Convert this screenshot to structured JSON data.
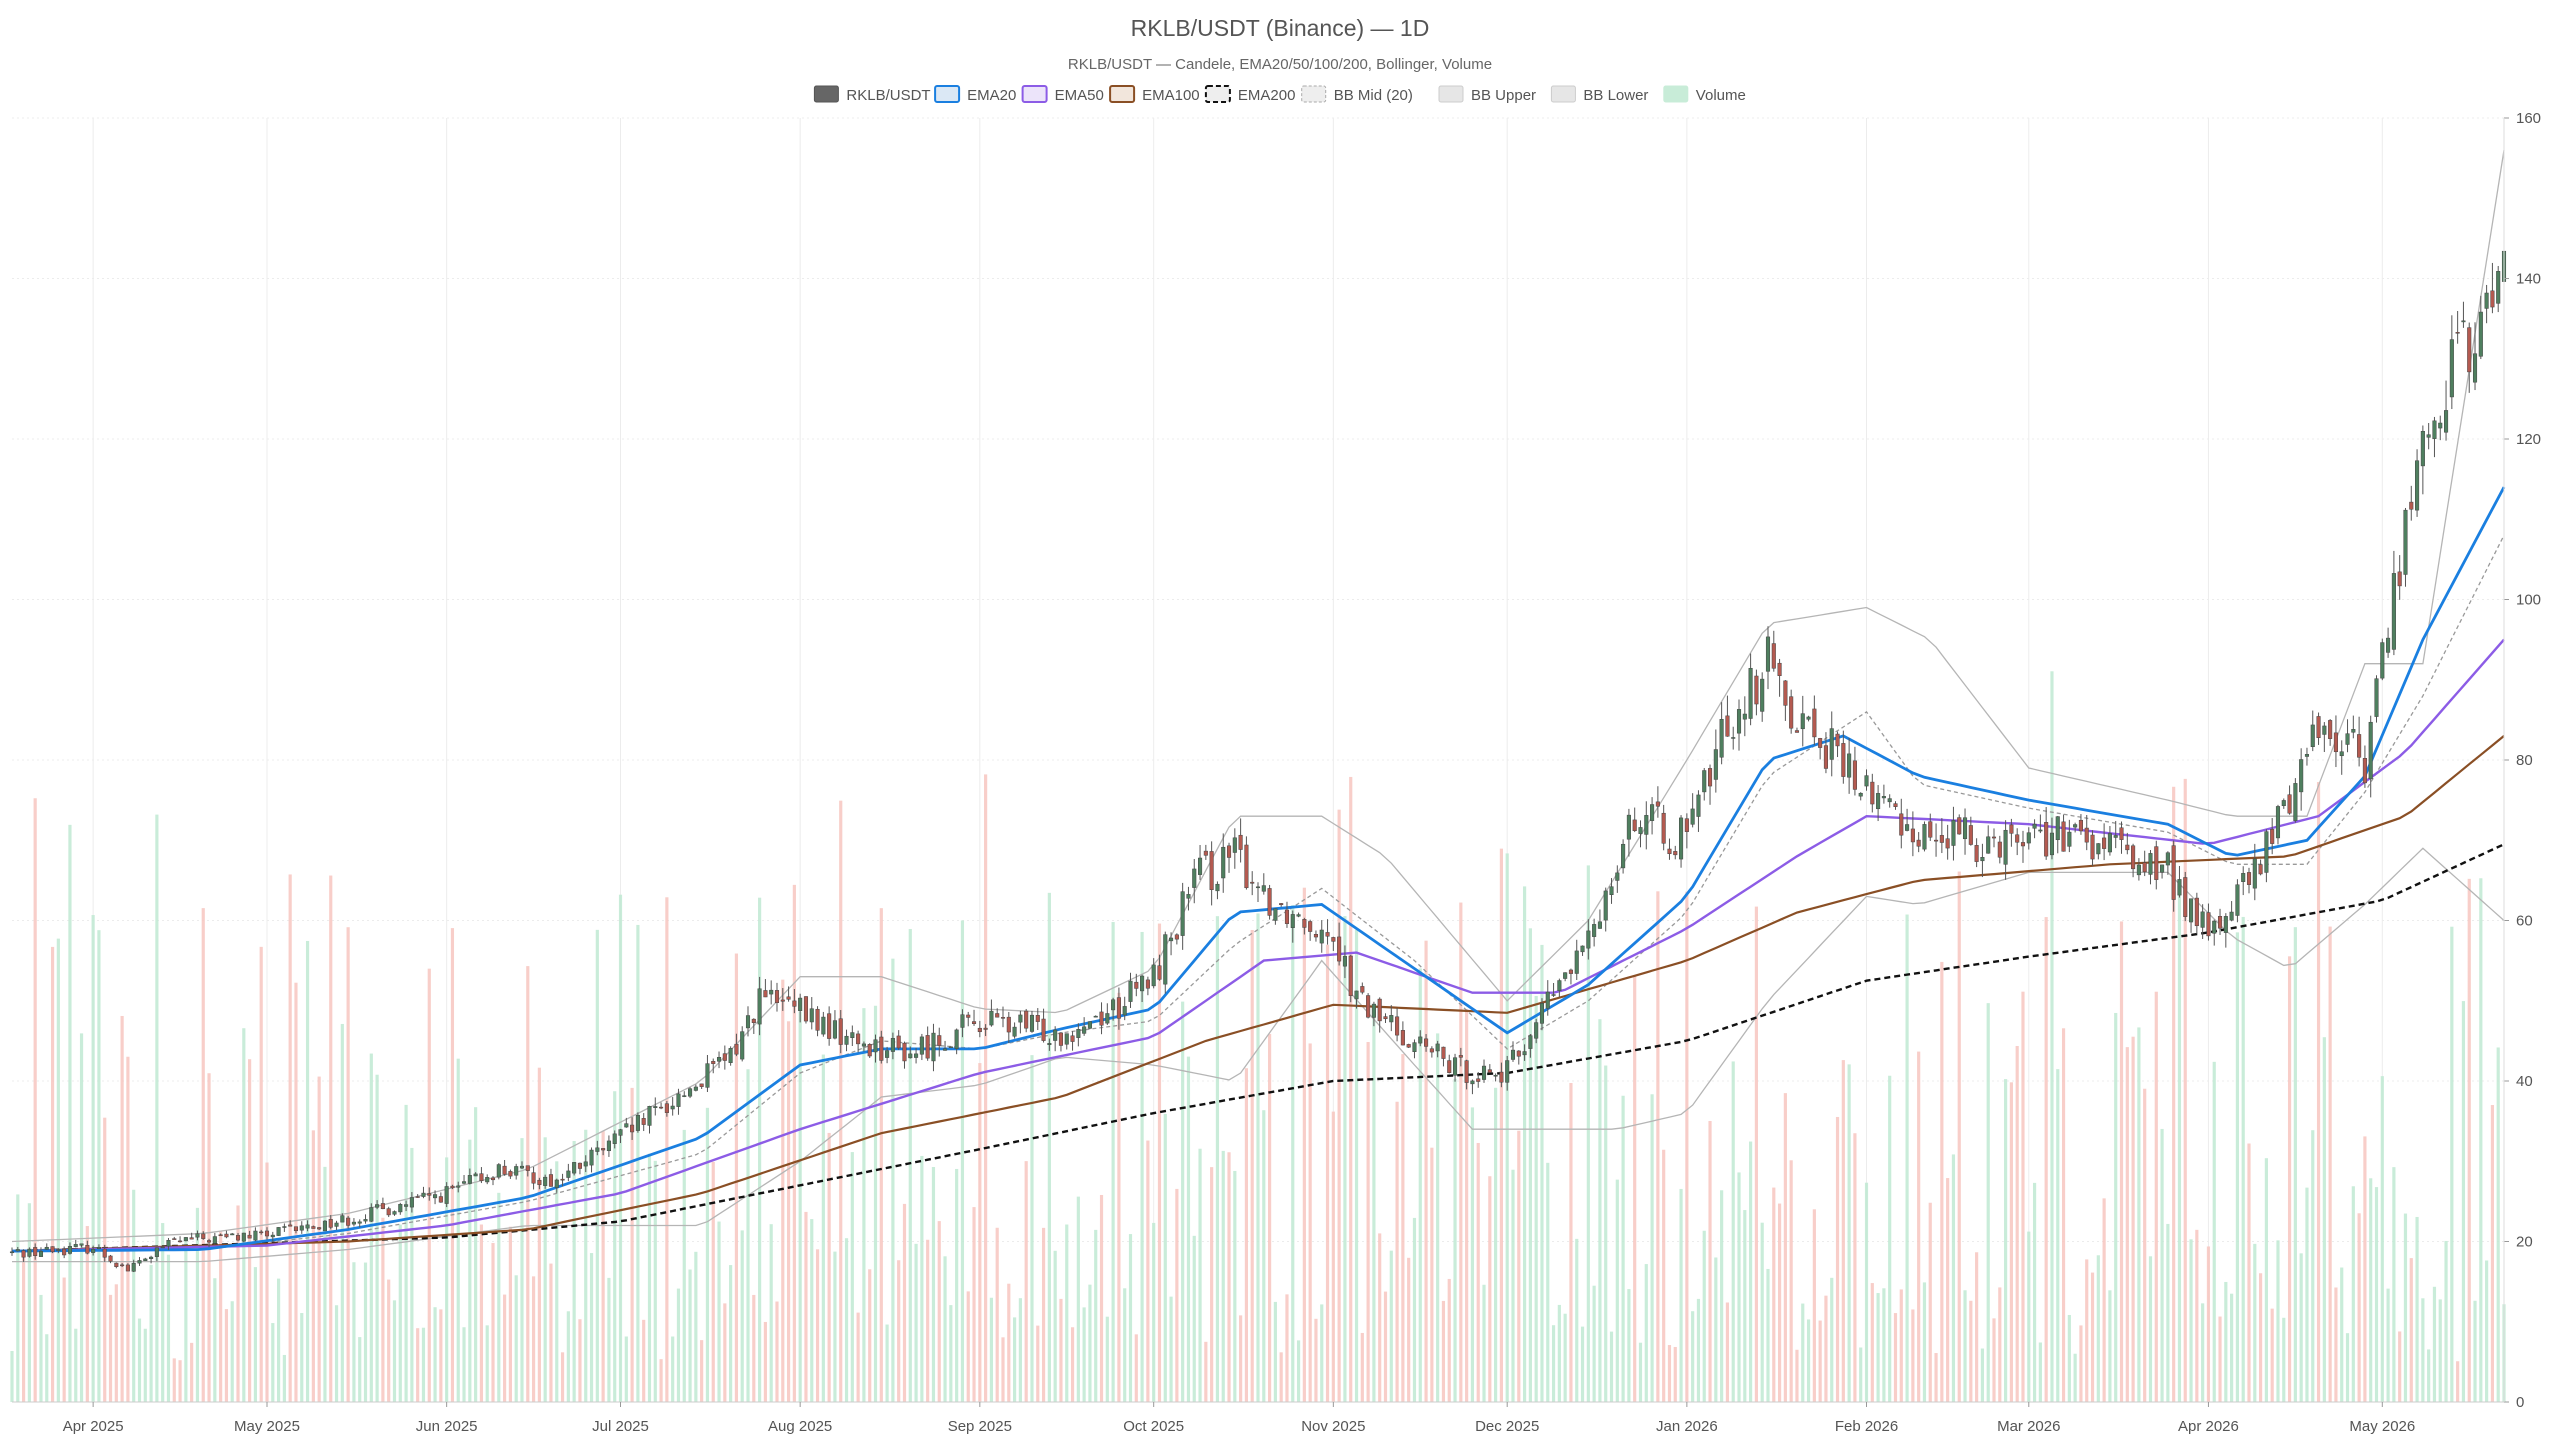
{
  "chart_data": {
    "type": "candlestick",
    "title": "RKLB/USDT (Binance) — 1D",
    "subtitle": "RKLB/USDT — Candele, EMA20/50/100/200, Bollinger, Volume",
    "legend": {
      "placement": "top-center",
      "items": [
        {
          "label": "RKLB/USDT",
          "kind": "candle"
        },
        {
          "label": "EMA20",
          "kind": "ema20"
        },
        {
          "label": "EMA50",
          "kind": "ema50"
        },
        {
          "label": "EMA100",
          "kind": "ema100"
        },
        {
          "label": "EMA200",
          "kind": "ema200"
        },
        {
          "label": "BB Mid (20)",
          "kind": "bbmid"
        },
        {
          "label": "BB Upper",
          "kind": "bbband"
        },
        {
          "label": "BB Lower",
          "kind": "bbband"
        },
        {
          "label": "Volume",
          "kind": "volume"
        }
      ]
    },
    "x_range": [
      "2025-03-18",
      "2026-05-22"
    ],
    "x_ticks": [
      {
        "date": "2025-04-01",
        "label": "Apr 2025"
      },
      {
        "date": "2025-05-01",
        "label": "May 2025"
      },
      {
        "date": "2025-06-01",
        "label": "Jun 2025"
      },
      {
        "date": "2025-07-01",
        "label": "Jul 2025"
      },
      {
        "date": "2025-08-01",
        "label": "Aug 2025"
      },
      {
        "date": "2025-09-01",
        "label": "Sep 2025"
      },
      {
        "date": "2025-10-01",
        "label": "Oct 2025"
      },
      {
        "date": "2025-11-01",
        "label": "Nov 2025"
      },
      {
        "date": "2025-12-01",
        "label": "Dec 2025"
      },
      {
        "date": "2026-01-01",
        "label": "Jan 2026"
      },
      {
        "date": "2026-02-01",
        "label": "Feb 2026"
      },
      {
        "date": "2026-03-01",
        "label": "Mar 2026"
      },
      {
        "date": "2026-04-01",
        "label": "Apr 2026"
      },
      {
        "date": "2026-05-01",
        "label": "May 2026"
      }
    ],
    "y_axis": {
      "position": "right",
      "ylim": [
        0,
        160
      ],
      "ticks": [
        0,
        20,
        40,
        60,
        80,
        100,
        120,
        140,
        160
      ]
    },
    "grid": true,
    "colors": {
      "up": "#4f7f5f",
      "down": "#b45a50",
      "wick": "#555555",
      "ema20": "#1a7fe0",
      "ema50": "#8c5ce6",
      "ema100": "#8a4f25",
      "ema200": "#111111",
      "bb": "#b5b5b5",
      "volume_up": "#bfe9d2",
      "volume_down": "#f7c6c0",
      "grid": "#ececec",
      "text": "#555555"
    },
    "price_series": [
      {
        "date": "2025-03-18",
        "close": 18.6
      },
      {
        "date": "2025-04-01",
        "close": 19.3
      },
      {
        "date": "2025-04-07",
        "close": 16.5
      },
      {
        "date": "2025-04-15",
        "close": 20.1
      },
      {
        "date": "2025-05-01",
        "close": 20.8
      },
      {
        "date": "2025-05-15",
        "close": 22.8
      },
      {
        "date": "2025-06-01",
        "close": 26.0
      },
      {
        "date": "2025-06-10",
        "close": 29.0
      },
      {
        "date": "2025-06-20",
        "close": 27.5
      },
      {
        "date": "2025-07-01",
        "close": 33.0
      },
      {
        "date": "2025-07-10",
        "close": 37.5
      },
      {
        "date": "2025-07-20",
        "close": 43.0
      },
      {
        "date": "2025-07-25",
        "close": 50.5
      },
      {
        "date": "2025-08-01",
        "close": 48.5
      },
      {
        "date": "2025-08-10",
        "close": 45.0
      },
      {
        "date": "2025-08-20",
        "close": 43.5
      },
      {
        "date": "2025-09-01",
        "close": 47.5
      },
      {
        "date": "2025-09-15",
        "close": 46.0
      },
      {
        "date": "2025-09-25",
        "close": 49.5
      },
      {
        "date": "2025-10-01",
        "close": 53.0
      },
      {
        "date": "2025-10-08",
        "close": 65.0
      },
      {
        "date": "2025-10-15",
        "close": 68.0
      },
      {
        "date": "2025-10-22",
        "close": 62.0
      },
      {
        "date": "2025-11-01",
        "close": 59.0
      },
      {
        "date": "2025-11-05",
        "close": 50.0
      },
      {
        "date": "2025-11-15",
        "close": 45.0
      },
      {
        "date": "2025-11-22",
        "close": 41.5
      },
      {
        "date": "2025-12-01",
        "close": 41.0
      },
      {
        "date": "2025-12-08",
        "close": 50.0
      },
      {
        "date": "2025-12-15",
        "close": 57.0
      },
      {
        "date": "2025-12-22",
        "close": 73.0
      },
      {
        "date": "2026-01-01",
        "close": 70.0
      },
      {
        "date": "2026-01-08",
        "close": 85.0
      },
      {
        "date": "2026-01-15",
        "close": 92.0
      },
      {
        "date": "2026-01-20",
        "close": 86.0
      },
      {
        "date": "2026-02-01",
        "close": 76.0
      },
      {
        "date": "2026-02-10",
        "close": 71.0
      },
      {
        "date": "2026-02-20",
        "close": 70.0
      },
      {
        "date": "2026-03-01",
        "close": 71.0
      },
      {
        "date": "2026-03-15",
        "close": 69.0
      },
      {
        "date": "2026-03-25",
        "close": 66.0
      },
      {
        "date": "2026-04-01",
        "close": 58.0
      },
      {
        "date": "2026-04-10",
        "close": 67.0
      },
      {
        "date": "2026-04-20",
        "close": 85.0
      },
      {
        "date": "2026-04-28",
        "close": 80.0
      },
      {
        "date": "2026-05-05",
        "close": 110.0
      },
      {
        "date": "2026-05-12",
        "close": 128.0
      },
      {
        "date": "2026-05-18",
        "close": 133.0
      },
      {
        "date": "2026-05-22",
        "close": 143.0
      }
    ],
    "ema20": [
      {
        "date": "2025-03-18",
        "value": 18.8
      },
      {
        "date": "2025-04-20",
        "value": 19.0
      },
      {
        "date": "2025-05-15",
        "value": 21.5
      },
      {
        "date": "2025-06-15",
        "value": 25.5
      },
      {
        "date": "2025-07-15",
        "value": 33.0
      },
      {
        "date": "2025-08-01",
        "value": 42.0
      },
      {
        "date": "2025-08-15",
        "value": 44.0
      },
      {
        "date": "2025-09-01",
        "value": 44.0
      },
      {
        "date": "2025-09-15",
        "value": 46.5
      },
      {
        "date": "2025-10-01",
        "value": 49.0
      },
      {
        "date": "2025-10-15",
        "value": 61.0
      },
      {
        "date": "2025-10-30",
        "value": 62.0
      },
      {
        "date": "2025-11-15",
        "value": 54.0
      },
      {
        "date": "2025-12-01",
        "value": 46.0
      },
      {
        "date": "2025-12-15",
        "value": 52.0
      },
      {
        "date": "2026-01-01",
        "value": 63.0
      },
      {
        "date": "2026-01-15",
        "value": 80.0
      },
      {
        "date": "2026-01-28",
        "value": 83.0
      },
      {
        "date": "2026-02-10",
        "value": 78.0
      },
      {
        "date": "2026-03-01",
        "value": 75.0
      },
      {
        "date": "2026-03-25",
        "value": 72.0
      },
      {
        "date": "2026-04-05",
        "value": 68.0
      },
      {
        "date": "2026-04-18",
        "value": 70.0
      },
      {
        "date": "2026-04-28",
        "value": 78.0
      },
      {
        "date": "2026-05-08",
        "value": 95.0
      },
      {
        "date": "2026-05-22",
        "value": 114.0
      }
    ],
    "ema50": [
      {
        "date": "2025-03-18",
        "value": 18.8
      },
      {
        "date": "2025-05-01",
        "value": 19.5
      },
      {
        "date": "2025-06-01",
        "value": 22.0
      },
      {
        "date": "2025-07-01",
        "value": 26.0
      },
      {
        "date": "2025-08-01",
        "value": 34.0
      },
      {
        "date": "2025-09-01",
        "value": 41.0
      },
      {
        "date": "2025-10-01",
        "value": 45.5
      },
      {
        "date": "2025-10-20",
        "value": 55.0
      },
      {
        "date": "2025-11-05",
        "value": 56.0
      },
      {
        "date": "2025-11-25",
        "value": 51.0
      },
      {
        "date": "2025-12-10",
        "value": 51.0
      },
      {
        "date": "2026-01-01",
        "value": 59.0
      },
      {
        "date": "2026-01-20",
        "value": 68.0
      },
      {
        "date": "2026-02-01",
        "value": 73.0
      },
      {
        "date": "2026-03-01",
        "value": 72.0
      },
      {
        "date": "2026-04-01",
        "value": 69.5
      },
      {
        "date": "2026-04-20",
        "value": 73.0
      },
      {
        "date": "2026-05-05",
        "value": 81.0
      },
      {
        "date": "2026-05-22",
        "value": 95.0
      }
    ],
    "ema100": [
      {
        "date": "2025-03-18",
        "value": 18.8
      },
      {
        "date": "2025-05-15",
        "value": 20.0
      },
      {
        "date": "2025-06-15",
        "value": 21.5
      },
      {
        "date": "2025-07-15",
        "value": 26.0
      },
      {
        "date": "2025-08-15",
        "value": 33.5
      },
      {
        "date": "2025-09-15",
        "value": 38.0
      },
      {
        "date": "2025-10-10",
        "value": 45.0
      },
      {
        "date": "2025-11-01",
        "value": 49.5
      },
      {
        "date": "2025-12-01",
        "value": 48.5
      },
      {
        "date": "2026-01-01",
        "value": 55.0
      },
      {
        "date": "2026-01-20",
        "value": 61.0
      },
      {
        "date": "2026-02-10",
        "value": 65.0
      },
      {
        "date": "2026-03-15",
        "value": 67.0
      },
      {
        "date": "2026-04-15",
        "value": 68.0
      },
      {
        "date": "2026-05-05",
        "value": 73.0
      },
      {
        "date": "2026-05-22",
        "value": 83.0
      }
    ],
    "ema200": [
      {
        "date": "2025-03-18",
        "value": 18.8
      },
      {
        "date": "2025-06-01",
        "value": 20.5
      },
      {
        "date": "2025-07-01",
        "value": 22.5
      },
      {
        "date": "2025-08-01",
        "value": 27.0
      },
      {
        "date": "2025-09-01",
        "value": 31.5
      },
      {
        "date": "2025-10-01",
        "value": 36.0
      },
      {
        "date": "2025-11-01",
        "value": 40.0
      },
      {
        "date": "2025-12-01",
        "value": 41.0
      },
      {
        "date": "2026-01-01",
        "value": 45.0
      },
      {
        "date": "2026-02-01",
        "value": 52.5
      },
      {
        "date": "2026-03-01",
        "value": 55.5
      },
      {
        "date": "2026-04-01",
        "value": 58.5
      },
      {
        "date": "2026-05-01",
        "value": 62.5
      },
      {
        "date": "2026-05-22",
        "value": 69.5
      }
    ],
    "bb_mid": [
      {
        "date": "2025-03-18",
        "value": 18.8
      },
      {
        "date": "2025-04-20",
        "value": 19.0
      },
      {
        "date": "2025-05-15",
        "value": 21.0
      },
      {
        "date": "2025-06-15",
        "value": 25.0
      },
      {
        "date": "2025-07-15",
        "value": 31.0
      },
      {
        "date": "2025-08-01",
        "value": 41.0
      },
      {
        "date": "2025-08-15",
        "value": 45.0
      },
      {
        "date": "2025-09-01",
        "value": 44.0
      },
      {
        "date": "2025-09-15",
        "value": 46.0
      },
      {
        "date": "2025-10-01",
        "value": 47.5
      },
      {
        "date": "2025-10-15",
        "value": 57.0
      },
      {
        "date": "2025-10-30",
        "value": 64.0
      },
      {
        "date": "2025-11-15",
        "value": 55.0
      },
      {
        "date": "2025-12-01",
        "value": 44.0
      },
      {
        "date": "2025-12-15",
        "value": 50.0
      },
      {
        "date": "2026-01-01",
        "value": 61.0
      },
      {
        "date": "2026-01-15",
        "value": 78.0
      },
      {
        "date": "2026-02-01",
        "value": 86.0
      },
      {
        "date": "2026-02-10",
        "value": 77.0
      },
      {
        "date": "2026-03-01",
        "value": 74.0
      },
      {
        "date": "2026-03-25",
        "value": 71.0
      },
      {
        "date": "2026-04-05",
        "value": 67.0
      },
      {
        "date": "2026-04-18",
        "value": 67.0
      },
      {
        "date": "2026-04-28",
        "value": 76.0
      },
      {
        "date": "2026-05-08",
        "value": 88.0
      },
      {
        "date": "2026-05-22",
        "value": 108.0
      }
    ],
    "bb_upper": [
      {
        "date": "2025-03-18",
        "value": 20.0
      },
      {
        "date": "2025-04-20",
        "value": 21.0
      },
      {
        "date": "2025-05-15",
        "value": 23.5
      },
      {
        "date": "2025-06-15",
        "value": 29.0
      },
      {
        "date": "2025-07-15",
        "value": 40.0
      },
      {
        "date": "2025-08-01",
        "value": 53.0
      },
      {
        "date": "2025-08-15",
        "value": 53.0
      },
      {
        "date": "2025-09-01",
        "value": 49.0
      },
      {
        "date": "2025-09-15",
        "value": 48.5
      },
      {
        "date": "2025-10-01",
        "value": 54.0
      },
      {
        "date": "2025-10-15",
        "value": 73.0
      },
      {
        "date": "2025-10-30",
        "value": 73.0
      },
      {
        "date": "2025-11-10",
        "value": 68.0
      },
      {
        "date": "2025-12-01",
        "value": 50.0
      },
      {
        "date": "2025-12-15",
        "value": 60.0
      },
      {
        "date": "2026-01-01",
        "value": 80.0
      },
      {
        "date": "2026-01-15",
        "value": 97.0
      },
      {
        "date": "2026-02-01",
        "value": 99.0
      },
      {
        "date": "2026-02-12",
        "value": 95.0
      },
      {
        "date": "2026-03-01",
        "value": 79.0
      },
      {
        "date": "2026-03-25",
        "value": 75.0
      },
      {
        "date": "2026-04-05",
        "value": 73.0
      },
      {
        "date": "2026-04-18",
        "value": 73.0
      },
      {
        "date": "2026-04-28",
        "value": 92.0
      },
      {
        "date": "2026-05-08",
        "value": 92.0
      },
      {
        "date": "2026-05-22",
        "value": 156.0
      }
    ],
    "bb_lower": [
      {
        "date": "2025-03-18",
        "value": 17.5
      },
      {
        "date": "2025-04-20",
        "value": 17.5
      },
      {
        "date": "2025-05-15",
        "value": 19.0
      },
      {
        "date": "2025-06-15",
        "value": 22.0
      },
      {
        "date": "2025-07-15",
        "value": 22.0
      },
      {
        "date": "2025-08-01",
        "value": 30.0
      },
      {
        "date": "2025-08-15",
        "value": 38.0
      },
      {
        "date": "2025-09-01",
        "value": 39.5
      },
      {
        "date": "2025-09-15",
        "value": 43.0
      },
      {
        "date": "2025-10-01",
        "value": 42.0
      },
      {
        "date": "2025-10-15",
        "value": 40.0
      },
      {
        "date": "2025-10-30",
        "value": 55.0
      },
      {
        "date": "2025-11-15",
        "value": 42.0
      },
      {
        "date": "2025-11-25",
        "value": 34.0
      },
      {
        "date": "2025-12-10",
        "value": 34.0
      },
      {
        "date": "2025-12-20",
        "value": 34.0
      },
      {
        "date": "2026-01-01",
        "value": 36.0
      },
      {
        "date": "2026-01-15",
        "value": 50.0
      },
      {
        "date": "2026-02-01",
        "value": 63.0
      },
      {
        "date": "2026-02-10",
        "value": 62.0
      },
      {
        "date": "2026-03-01",
        "value": 66.0
      },
      {
        "date": "2026-03-25",
        "value": 66.0
      },
      {
        "date": "2026-04-05",
        "value": 58.0
      },
      {
        "date": "2026-04-15",
        "value": 54.0
      },
      {
        "date": "2026-04-28",
        "value": 62.0
      },
      {
        "date": "2026-05-08",
        "value": 69.0
      },
      {
        "date": "2026-05-22",
        "value": 60.0
      }
    ]
  }
}
